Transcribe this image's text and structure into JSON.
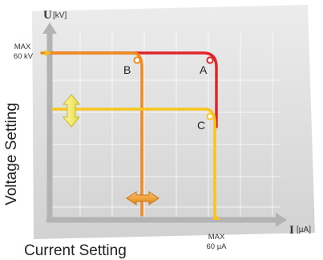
{
  "axes": {
    "y_symbol": "U",
    "y_unit": "[kV]",
    "x_symbol": "I",
    "x_unit": "[µA]",
    "y_max_line1": "MAX",
    "y_max_line2": "60 kV",
    "x_max_line1": "MAX",
    "x_max_line2": "60 µA"
  },
  "titles": {
    "y_title": "Voltage Setting",
    "x_title": "Current Setting"
  },
  "points": {
    "a": "A",
    "b": "B",
    "c": "C"
  },
  "colors": {
    "panel": "#dcdcdc",
    "axis": "#b0b0b0",
    "red": "#e0262b",
    "orange": "#f08a1c",
    "yellow": "#f7c51e",
    "arrow_yellow": "#f5ee6a",
    "arrow_orange": "#f0a030"
  }
}
